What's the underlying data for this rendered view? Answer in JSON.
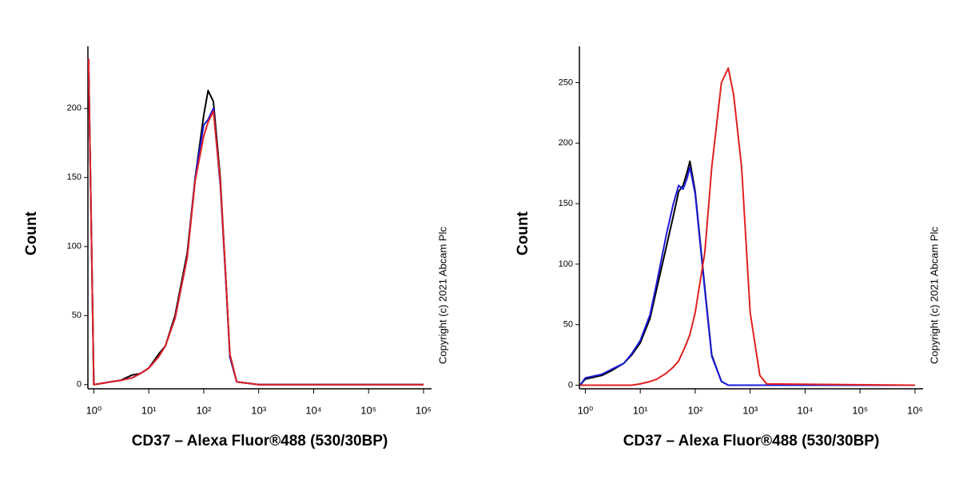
{
  "chart_data": [
    {
      "type": "line",
      "xlabel": "CD37 – Alexa Fluor®488 (530/30BP)",
      "ylabel": "Count",
      "annotation": "Copyright (c) 2021 Abcam Plc",
      "xscale": "log",
      "x": [
        0.8,
        1,
        2,
        3,
        5,
        7,
        10,
        15,
        20,
        30,
        50,
        70,
        100,
        120,
        150,
        200,
        250,
        300,
        400,
        1000,
        1000000
      ],
      "series": [
        {
          "color": "#000000",
          "values": [
            236,
            0,
            2,
            3,
            7,
            8,
            12,
            22,
            28,
            50,
            95,
            150,
            195,
            213,
            205,
            150,
            80,
            20,
            2,
            0,
            0
          ]
        },
        {
          "color": "#1a1adc",
          "values": [
            236,
            0,
            2,
            3,
            5,
            8,
            12,
            20,
            28,
            48,
            92,
            150,
            188,
            192,
            200,
            145,
            78,
            20,
            2,
            0,
            0
          ]
        },
        {
          "color": "#e02020",
          "values": [
            236,
            0,
            2,
            3,
            5,
            8,
            12,
            20,
            28,
            48,
            92,
            148,
            180,
            190,
            198,
            148,
            80,
            22,
            2,
            0,
            0
          ]
        }
      ],
      "xlim": [
        0.78,
        1400000
      ],
      "ylim": [
        -3,
        245
      ],
      "xticks": [
        {
          "value": 1,
          "label": "10⁰"
        },
        {
          "value": 10,
          "label": "10¹"
        },
        {
          "value": 100,
          "label": "10²"
        },
        {
          "value": 1000,
          "label": "10³"
        },
        {
          "value": 10000,
          "label": "10⁴"
        },
        {
          "value": 100000,
          "label": "10⁵"
        },
        {
          "value": 1000000,
          "label": "10⁶"
        }
      ],
      "yticks": [
        0,
        50,
        100,
        150,
        200
      ]
    },
    {
      "type": "line",
      "xlabel": "CD37 – Alexa Fluor®488 (530/30BP)",
      "ylabel": "Count",
      "annotation": "Copyright (c) 2021 Abcam Plc",
      "xscale": "log",
      "x": [
        0.8,
        1,
        2,
        3,
        5,
        7,
        10,
        15,
        20,
        30,
        40,
        50,
        60,
        70,
        80,
        100,
        150,
        200,
        300,
        400,
        500,
        700,
        1000,
        1500,
        2000,
        1000000
      ],
      "series": [
        {
          "color": "#000000",
          "values": [
            0,
            5,
            8,
            12,
            18,
            25,
            35,
            55,
            80,
            115,
            140,
            160,
            165,
            175,
            185,
            160,
            80,
            25,
            3,
            0,
            0,
            0,
            0,
            0,
            0,
            0
          ]
        },
        {
          "color": "#1a1adc",
          "values": [
            0,
            6,
            9,
            13,
            18,
            26,
            37,
            58,
            85,
            125,
            150,
            165,
            162,
            170,
            180,
            158,
            78,
            24,
            3,
            0,
            0,
            0,
            0,
            0,
            0,
            0
          ]
        },
        {
          "color": "#e02020",
          "values": [
            0,
            0,
            0,
            0,
            0,
            0,
            1,
            3,
            5,
            10,
            15,
            20,
            28,
            35,
            42,
            60,
            110,
            180,
            250,
            262,
            240,
            180,
            60,
            8,
            1,
            0
          ]
        }
      ],
      "xlim": [
        0.78,
        1400000
      ],
      "ylim": [
        -3,
        280
      ],
      "xticks": [
        {
          "value": 1,
          "label": "10⁰"
        },
        {
          "value": 10,
          "label": "10¹"
        },
        {
          "value": 100,
          "label": "10²"
        },
        {
          "value": 1000,
          "label": "10³"
        },
        {
          "value": 10000,
          "label": "10⁴"
        },
        {
          "value": 100000,
          "label": "10⁵"
        },
        {
          "value": 1000000,
          "label": "10⁶"
        }
      ],
      "yticks": [
        0,
        50,
        100,
        150,
        200,
        250
      ]
    }
  ]
}
